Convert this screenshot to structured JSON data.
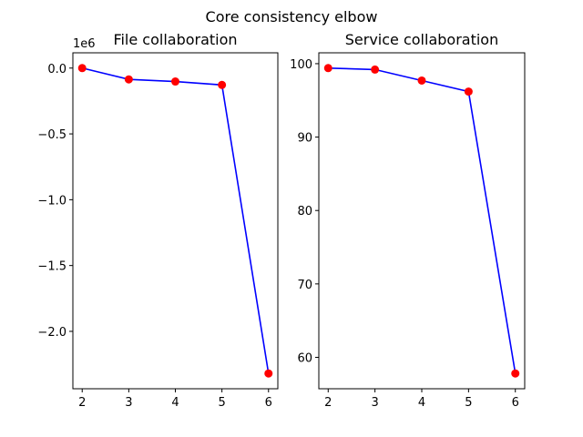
{
  "figure": {
    "title": "Core consistency elbow"
  },
  "chart_data": [
    {
      "type": "line",
      "title": "File collaboration",
      "xlabel": "",
      "ylabel": "",
      "offset_label": "1e6",
      "x": [
        2,
        3,
        4,
        5,
        6
      ],
      "series": [
        {
          "values": [
            0,
            -86000,
            -102000,
            -128000,
            -2320000
          ]
        }
      ],
      "xlim": [
        1.8,
        6.2
      ],
      "ylim": [
        -2436000,
        116000
      ],
      "xticks": [
        2,
        3,
        4,
        5,
        6
      ],
      "xtick_labels": [
        "2",
        "3",
        "4",
        "5",
        "6"
      ],
      "yticks": [
        0,
        -500000,
        -1000000,
        -1500000,
        -2000000
      ],
      "ytick_labels": [
        "0.0",
        "−0.5",
        "−1.0",
        "−1.5",
        "−2.0"
      ],
      "grid": false,
      "line_color": "#0000ff",
      "marker_color": "#ff0000"
    },
    {
      "type": "line",
      "title": "Service collaboration",
      "xlabel": "",
      "ylabel": "",
      "x": [
        2,
        3,
        4,
        5,
        6
      ],
      "series": [
        {
          "values": [
            99.4,
            99.2,
            97.7,
            96.2,
            57.8
          ]
        }
      ],
      "xlim": [
        1.8,
        6.2
      ],
      "ylim": [
        55.72,
        101.48
      ],
      "xticks": [
        2,
        3,
        4,
        5,
        6
      ],
      "xtick_labels": [
        "2",
        "3",
        "4",
        "5",
        "6"
      ],
      "yticks": [
        60,
        70,
        80,
        90,
        100
      ],
      "ytick_labels": [
        "60",
        "70",
        "80",
        "90",
        "100"
      ],
      "grid": false,
      "line_color": "#0000ff",
      "marker_color": "#ff0000"
    }
  ]
}
